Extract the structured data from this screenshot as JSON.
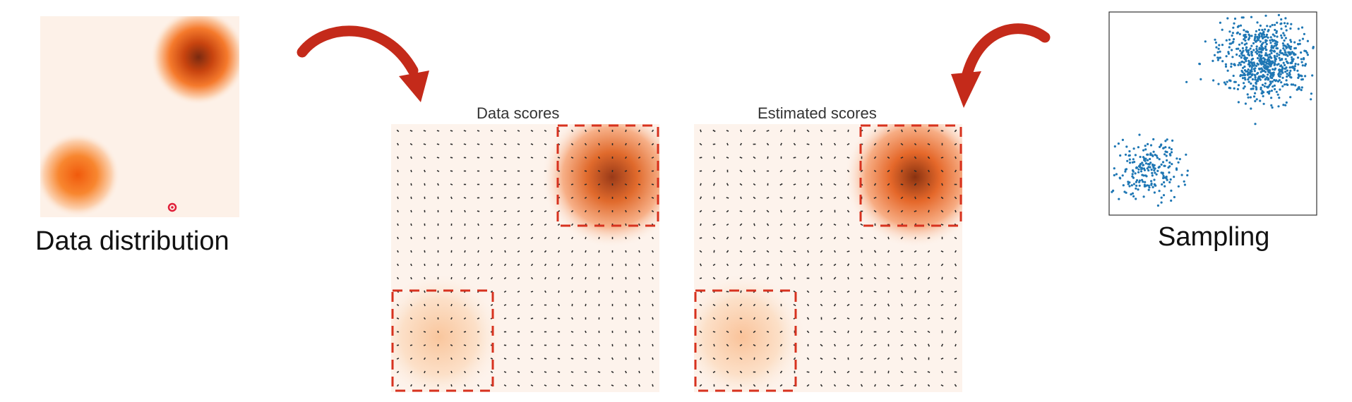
{
  "captions": {
    "data_distribution": "Data distribution",
    "sampling": "Sampling"
  },
  "panels": {
    "data_scores_title": "Data scores",
    "estimated_scores_title": "Estimated scores"
  },
  "colors": {
    "density_dark": "#8a2e10",
    "density_mid": "#f56a14",
    "background": "#fdf1e8",
    "arrow_red": "#c42a1a",
    "dashed_box": "#d7321f",
    "sample_point": "#1f77b4",
    "score_arrow": "#2a2a2a"
  }
}
